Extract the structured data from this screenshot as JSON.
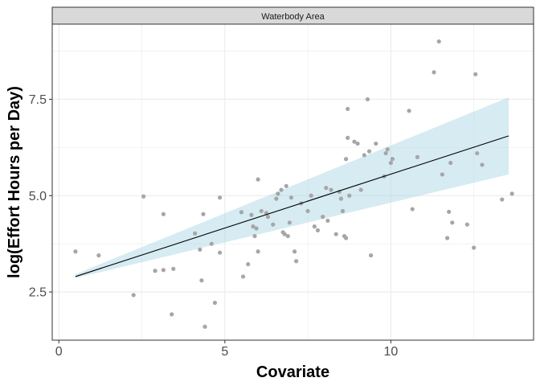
{
  "chart_data": {
    "type": "scatter",
    "facet_label": "Waterbody Area",
    "xlabel": "Covariate",
    "ylabel": "log(Effort Hours per Day)",
    "xlim": [
      -0.2,
      14.3
    ],
    "ylim": [
      1.25,
      9.45
    ],
    "x_ticks": [
      0,
      5,
      10
    ],
    "x_tick_labels": [
      "0",
      "5",
      "10"
    ],
    "y_ticks": [
      2.5,
      5.0,
      7.5
    ],
    "y_tick_labels": [
      "2.5",
      "5.0",
      "7.5"
    ],
    "grid": true,
    "colors": {
      "points": "#a6a6a6",
      "ribbon": "#add8e6",
      "line": "#000000",
      "strip_fill": "#d9d9d9",
      "grid": "#ebebeb",
      "panel_border": "#333333"
    },
    "points": [
      {
        "x": 0.5,
        "y": 3.55
      },
      {
        "x": 1.2,
        "y": 3.45
      },
      {
        "x": 2.25,
        "y": 2.42
      },
      {
        "x": 2.55,
        "y": 4.98
      },
      {
        "x": 2.9,
        "y": 3.05
      },
      {
        "x": 3.15,
        "y": 3.07
      },
      {
        "x": 3.15,
        "y": 4.52
      },
      {
        "x": 3.4,
        "y": 1.92
      },
      {
        "x": 3.45,
        "y": 3.1
      },
      {
        "x": 4.1,
        "y": 4.02
      },
      {
        "x": 4.25,
        "y": 3.6
      },
      {
        "x": 4.3,
        "y": 2.8
      },
      {
        "x": 4.35,
        "y": 4.52
      },
      {
        "x": 4.4,
        "y": 1.6
      },
      {
        "x": 4.6,
        "y": 3.75
      },
      {
        "x": 4.7,
        "y": 2.22
      },
      {
        "x": 4.85,
        "y": 3.52
      },
      {
        "x": 4.85,
        "y": 4.95
      },
      {
        "x": 5.5,
        "y": 4.57
      },
      {
        "x": 5.55,
        "y": 2.9
      },
      {
        "x": 5.7,
        "y": 3.22
      },
      {
        "x": 5.8,
        "y": 4.5
      },
      {
        "x": 5.85,
        "y": 4.2
      },
      {
        "x": 5.9,
        "y": 3.95
      },
      {
        "x": 5.95,
        "y": 4.15
      },
      {
        "x": 6.0,
        "y": 3.55
      },
      {
        "x": 6.0,
        "y": 5.42
      },
      {
        "x": 6.1,
        "y": 4.6
      },
      {
        "x": 6.25,
        "y": 4.55
      },
      {
        "x": 6.3,
        "y": 4.45
      },
      {
        "x": 6.45,
        "y": 4.25
      },
      {
        "x": 6.55,
        "y": 4.92
      },
      {
        "x": 6.6,
        "y": 5.05
      },
      {
        "x": 6.7,
        "y": 5.15
      },
      {
        "x": 6.75,
        "y": 4.05
      },
      {
        "x": 6.8,
        "y": 4.0
      },
      {
        "x": 6.85,
        "y": 5.25
      },
      {
        "x": 6.9,
        "y": 3.95
      },
      {
        "x": 6.95,
        "y": 4.3
      },
      {
        "x": 7.0,
        "y": 4.95
      },
      {
        "x": 7.1,
        "y": 3.55
      },
      {
        "x": 7.15,
        "y": 3.3
      },
      {
        "x": 7.3,
        "y": 4.8
      },
      {
        "x": 7.5,
        "y": 4.6
      },
      {
        "x": 7.6,
        "y": 5.0
      },
      {
        "x": 7.7,
        "y": 4.2
      },
      {
        "x": 7.8,
        "y": 4.1
      },
      {
        "x": 7.95,
        "y": 4.45
      },
      {
        "x": 8.05,
        "y": 5.2
      },
      {
        "x": 8.1,
        "y": 4.35
      },
      {
        "x": 8.2,
        "y": 5.15
      },
      {
        "x": 8.35,
        "y": 4.0
      },
      {
        "x": 8.45,
        "y": 5.1
      },
      {
        "x": 8.5,
        "y": 4.92
      },
      {
        "x": 8.55,
        "y": 4.6
      },
      {
        "x": 8.6,
        "y": 3.95
      },
      {
        "x": 8.65,
        "y": 3.9
      },
      {
        "x": 8.65,
        "y": 5.95
      },
      {
        "x": 8.7,
        "y": 6.5
      },
      {
        "x": 8.7,
        "y": 7.25
      },
      {
        "x": 8.75,
        "y": 5.0
      },
      {
        "x": 8.9,
        "y": 6.4
      },
      {
        "x": 9.0,
        "y": 6.35
      },
      {
        "x": 9.1,
        "y": 5.15
      },
      {
        "x": 9.2,
        "y": 6.05
      },
      {
        "x": 9.3,
        "y": 7.5
      },
      {
        "x": 9.35,
        "y": 6.15
      },
      {
        "x": 9.4,
        "y": 3.45
      },
      {
        "x": 9.55,
        "y": 6.35
      },
      {
        "x": 9.8,
        "y": 5.5
      },
      {
        "x": 9.85,
        "y": 6.1
      },
      {
        "x": 9.9,
        "y": 6.2
      },
      {
        "x": 10.0,
        "y": 5.85
      },
      {
        "x": 10.05,
        "y": 5.95
      },
      {
        "x": 10.55,
        "y": 7.2
      },
      {
        "x": 10.65,
        "y": 4.65
      },
      {
        "x": 10.8,
        "y": 6.0
      },
      {
        "x": 11.3,
        "y": 8.2
      },
      {
        "x": 11.45,
        "y": 9.0
      },
      {
        "x": 11.55,
        "y": 5.55
      },
      {
        "x": 11.7,
        "y": 3.9
      },
      {
        "x": 11.75,
        "y": 4.58
      },
      {
        "x": 11.8,
        "y": 5.85
      },
      {
        "x": 11.85,
        "y": 4.3
      },
      {
        "x": 12.3,
        "y": 4.25
      },
      {
        "x": 12.5,
        "y": 3.65
      },
      {
        "x": 12.55,
        "y": 8.15
      },
      {
        "x": 12.6,
        "y": 6.1
      },
      {
        "x": 12.75,
        "y": 5.8
      },
      {
        "x": 13.35,
        "y": 4.9
      },
      {
        "x": 13.65,
        "y": 5.05
      }
    ],
    "fit_line": {
      "x": [
        0.5,
        13.55
      ],
      "y": [
        2.9,
        6.55
      ]
    },
    "ribbon": {
      "x": [
        0.5,
        13.55
      ],
      "lower": [
        2.86,
        5.55
      ],
      "upper": [
        2.96,
        7.55
      ]
    }
  }
}
